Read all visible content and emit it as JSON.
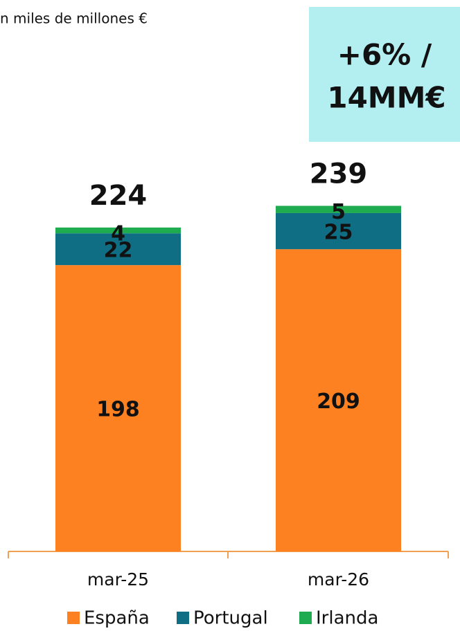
{
  "chart_data": {
    "type": "stacked_bar",
    "subtitle": "n miles de millones €",
    "annotation": [
      "+6% /",
      "14MM€"
    ],
    "categories": [
      "mar-25",
      "mar-26"
    ],
    "series": [
      {
        "name": "España",
        "color": "#fd8120",
        "values": [
          198,
          209
        ]
      },
      {
        "name": "Portugal",
        "color": "#0f6e84",
        "values": [
          22,
          25
        ]
      },
      {
        "name": "Irlanda",
        "color": "#1fab4f",
        "values": [
          4,
          5
        ]
      }
    ],
    "totals": [
      224,
      239
    ]
  }
}
